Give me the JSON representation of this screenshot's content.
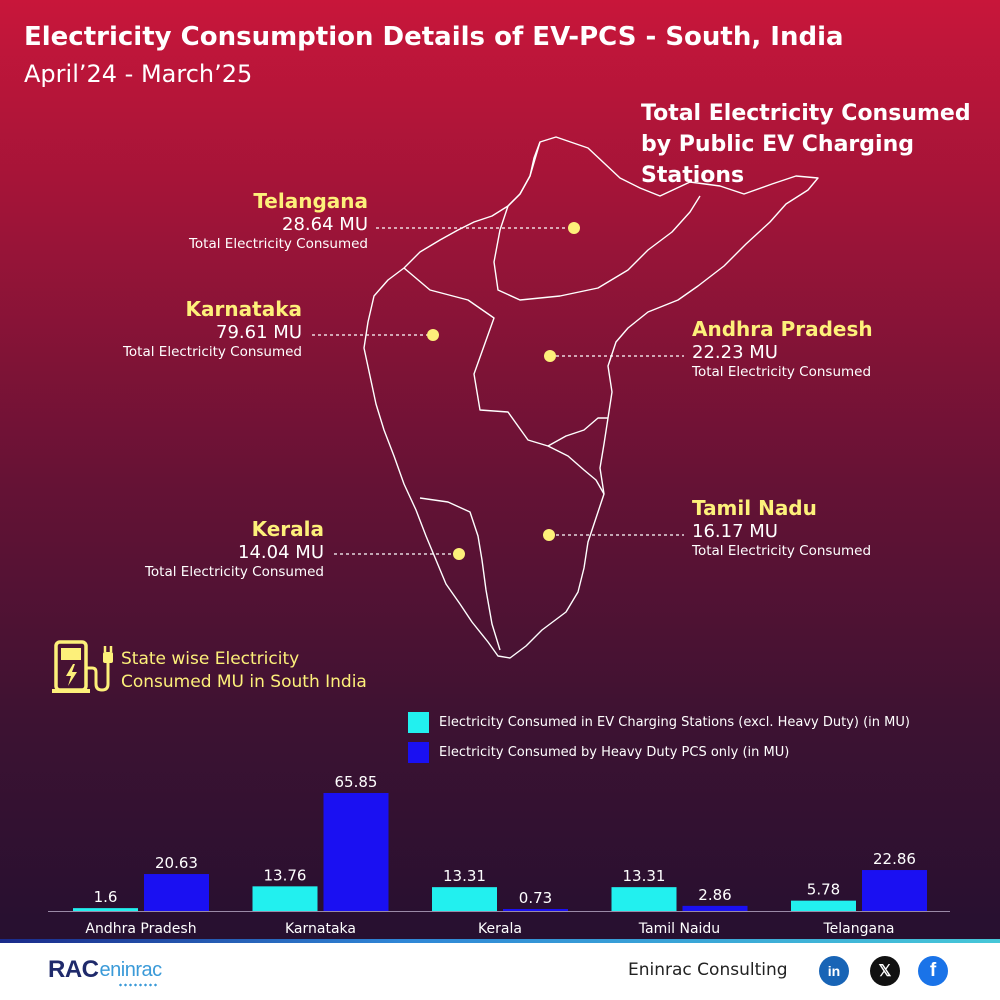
{
  "header": {
    "title": "Electricity Consumption Details of EV-PCS - South, India",
    "subtitle": "April’24 - March’25"
  },
  "map": {
    "heading": "Total Electricity Consumed by Public EV Charging Stations",
    "states": [
      {
        "name": "Telangana",
        "value": "28.64 MU",
        "caption": "Total Electricity Consumed"
      },
      {
        "name": "Karnataka",
        "value": "79.61 MU",
        "caption": "Total Electricity Consumed"
      },
      {
        "name": "Andhra Pradesh",
        "value": "22.23 MU",
        "caption": "Total Electricity Consumed"
      },
      {
        "name": "Tamil Nadu",
        "value": "16.17 MU",
        "caption": "Total Electricity Consumed"
      },
      {
        "name": "Kerala",
        "value": "14.04 MU",
        "caption": "Total Electricity Consumed"
      }
    ],
    "marker_color": "#fdf07a",
    "outline_color": "#ffffff"
  },
  "chart_caption": {
    "line1": "State wise Electricity",
    "line2": "Consumed MU in South India",
    "icon": "ev-charging-station-icon"
  },
  "chart_data": {
    "type": "bar",
    "categories": [
      "Andhra Pradesh",
      "Karnataka",
      "Kerala",
      "Tamil Naidu",
      "Telangana"
    ],
    "series": [
      {
        "name": "Electricity Consumed in EV Charging Stations (excl. Heavy Duty) (in MU)",
        "values": [
          1.6,
          13.76,
          13.31,
          13.31,
          5.78
        ],
        "labels": [
          "1.6",
          "13.76",
          "13.31",
          "13.31",
          "5.78"
        ],
        "color": "#22f0ef"
      },
      {
        "name": "Electricity Consumed by Heavy Duty PCS only (in MU)",
        "values": [
          20.63,
          65.85,
          0.73,
          2.86,
          22.86
        ],
        "labels": [
          "20.63",
          "65.85",
          "0.73",
          "2.86",
          "22.86"
        ],
        "color": "#1a10f2"
      }
    ],
    "ylim": [
      0,
      65.85
    ],
    "grid": false,
    "legend": "top-right",
    "title": "",
    "xlabel": "",
    "ylabel": ""
  },
  "footer": {
    "brand_main": "RAC",
    "brand_tail": "eninrac",
    "company": "Eninrac Consulting",
    "social": [
      {
        "icon": "linkedin-icon",
        "label": "in"
      },
      {
        "icon": "x-icon",
        "label": "𝕏"
      },
      {
        "icon": "facebook-icon",
        "label": "f"
      }
    ]
  }
}
